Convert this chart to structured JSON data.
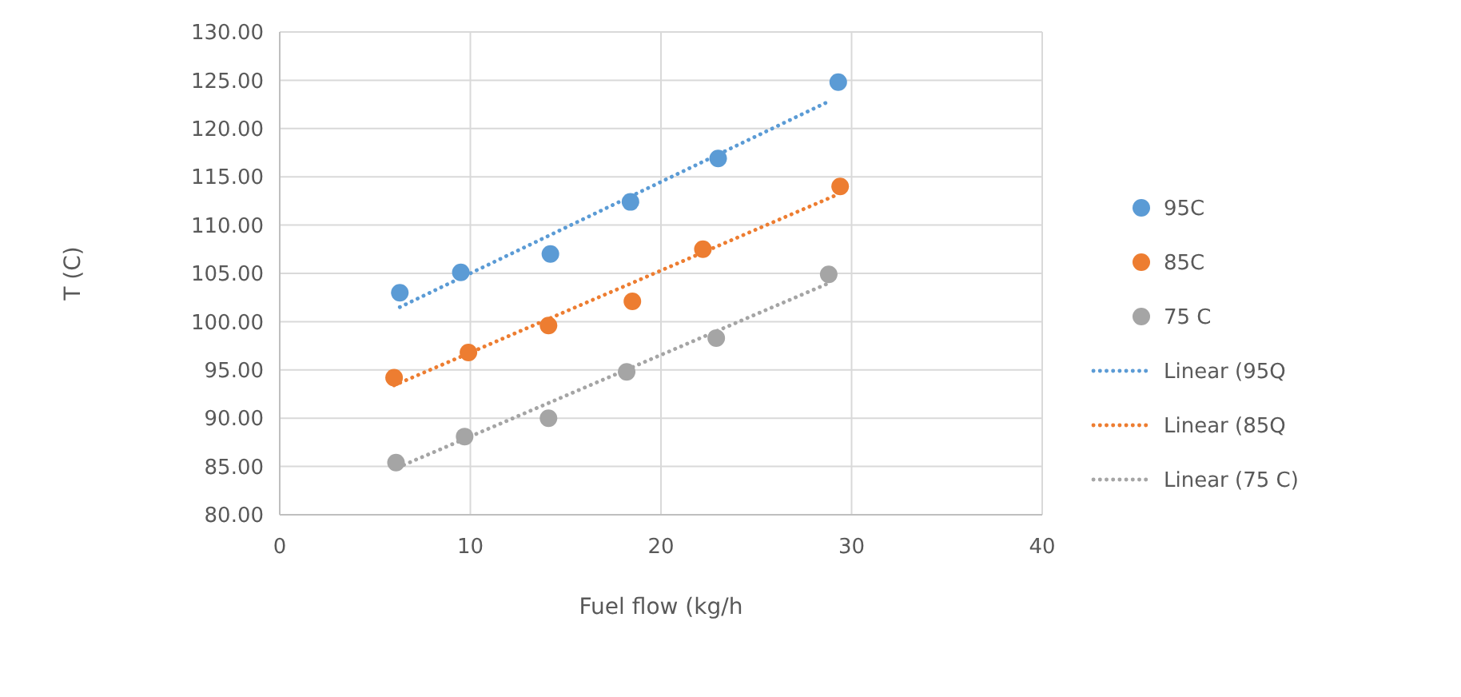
{
  "chart_data": {
    "type": "scatter",
    "xlabel": "Fuel flow (kg/h",
    "ylabel": "T (C)",
    "xlim": [
      0,
      40
    ],
    "xticks": [
      0,
      10,
      20,
      30,
      40
    ],
    "ylim": [
      80,
      130
    ],
    "yticks": [
      {
        "value": 80,
        "label": "80.00"
      },
      {
        "value": 85,
        "label": "85.00"
      },
      {
        "value": 90,
        "label": "90.00"
      },
      {
        "value": 95,
        "label": "95.00"
      },
      {
        "value": 100,
        "label": "100.00"
      },
      {
        "value": 105,
        "label": "105.00"
      },
      {
        "value": 110,
        "label": "110.00"
      },
      {
        "value": 115,
        "label": "115.00"
      },
      {
        "value": 120,
        "label": "120.00"
      },
      {
        "value": 125,
        "label": "125.00"
      },
      {
        "value": 130,
        "label": "130.00"
      }
    ],
    "grid": true,
    "legend": "right",
    "marker": "circle",
    "series": [
      {
        "name": "95C",
        "color": "#5b9bd5",
        "x": [
          6.3,
          9.5,
          14.2,
          18.4,
          23.0,
          29.3
        ],
        "values": [
          103.0,
          105.1,
          107.0,
          112.4,
          116.9,
          124.8
        ]
      },
      {
        "name": "85C",
        "color": "#ed7d31",
        "x": [
          6.0,
          9.9,
          14.1,
          18.5,
          22.2,
          29.4
        ],
        "values": [
          94.2,
          96.8,
          99.6,
          102.1,
          107.5,
          114.0
        ]
      },
      {
        "name": "75 C",
        "color": "#a5a5a5",
        "x": [
          6.1,
          9.7,
          14.1,
          18.2,
          22.9,
          28.8
        ],
        "values": [
          85.4,
          88.1,
          90.0,
          94.8,
          98.3,
          104.9
        ]
      },
      {
        "name": "Linear (95Q",
        "type": "line",
        "line_style": "dotted",
        "marker": "none",
        "color": "#5b9bd5",
        "x": [
          6.3,
          28.9
        ],
        "values": [
          101.5,
          122.9
        ]
      },
      {
        "name": "Linear (85Q",
        "type": "line",
        "line_style": "dotted",
        "marker": "none",
        "color": "#ed7d31",
        "x": [
          6.0,
          29.3
        ],
        "values": [
          93.4,
          113.2
        ]
      },
      {
        "name": "Linear (75 C)",
        "type": "line",
        "line_style": "dotted",
        "marker": "none",
        "color": "#a5a5a5",
        "x": [
          6.2,
          28.7
        ],
        "values": [
          84.9,
          103.9
        ]
      }
    ]
  }
}
